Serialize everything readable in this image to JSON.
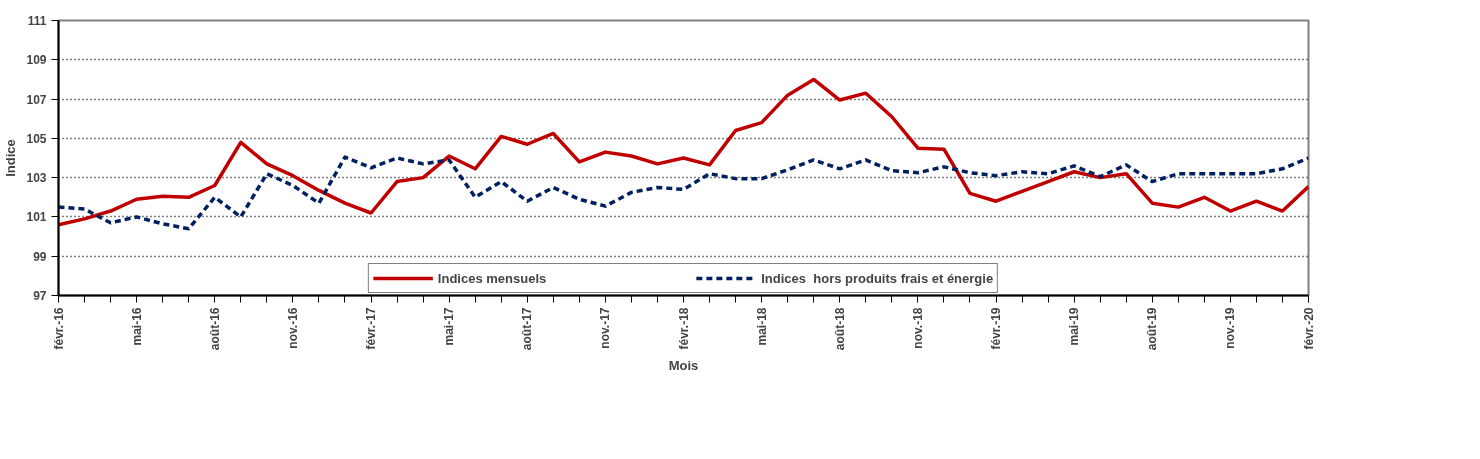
{
  "chart_data": {
    "type": "line",
    "xlabel": "Mois",
    "ylabel": "Indice",
    "categories": [
      "févr.-16",
      null,
      null,
      "mai-16",
      null,
      null,
      "août-16",
      null,
      null,
      "nov.-16",
      null,
      null,
      "févr.-17",
      null,
      null,
      "mai-17",
      null,
      null,
      "août-17",
      null,
      null,
      "nov.-17",
      null,
      null,
      "févr.-18",
      null,
      null,
      "mai-18",
      null,
      null,
      "août-18",
      null,
      null,
      "nov.-18",
      null,
      null,
      "févr.-19",
      null,
      null,
      "mai-19",
      null,
      null,
      "août-19",
      null,
      null,
      "nov.-19",
      null,
      null,
      "févr.-20"
    ],
    "series": [
      {
        "name": "Indices mensuels",
        "color": "#c00000",
        "line_style": "solid",
        "values": [
          100.6,
          100.9,
          101.3,
          101.9,
          102.05,
          102.0,
          102.6,
          104.8,
          103.7,
          103.1,
          102.35,
          101.7,
          101.2,
          102.8,
          103.0,
          104.1,
          103.45,
          105.1,
          104.7,
          105.25,
          103.8,
          104.3,
          104.1,
          103.7,
          104.0,
          103.65,
          105.4,
          105.8,
          107.2,
          108.0,
          106.95,
          107.3,
          106.1,
          104.5,
          104.45,
          102.2,
          101.8,
          102.3,
          102.8,
          103.3,
          103.0,
          103.2,
          101.7,
          101.5,
          102.0,
          101.3,
          101.8,
          101.3,
          102.55
        ]
      },
      {
        "name": "Indices  hors produits frais et énergie",
        "color": "#002060",
        "line_style": "dashed",
        "values": [
          101.5,
          101.4,
          100.7,
          101.0,
          100.65,
          100.4,
          102.0,
          101.0,
          103.2,
          102.6,
          101.7,
          104.05,
          103.5,
          104.0,
          103.7,
          103.9,
          102.0,
          102.8,
          101.8,
          102.5,
          101.9,
          101.55,
          102.25,
          102.5,
          102.4,
          103.2,
          102.95,
          102.95,
          103.4,
          103.9,
          103.45,
          103.9,
          103.35,
          103.25,
          103.55,
          103.25,
          103.1,
          103.3,
          103.2,
          103.6,
          103.05,
          103.65,
          102.8,
          103.2,
          103.2,
          103.2,
          103.2,
          103.45,
          104.0
        ]
      }
    ],
    "ylim": [
      97,
      111
    ],
    "yticks": [
      97,
      99,
      101,
      103,
      105,
      107,
      109,
      111
    ],
    "grid": "y",
    "legend": "bottom",
    "marker": "none"
  }
}
